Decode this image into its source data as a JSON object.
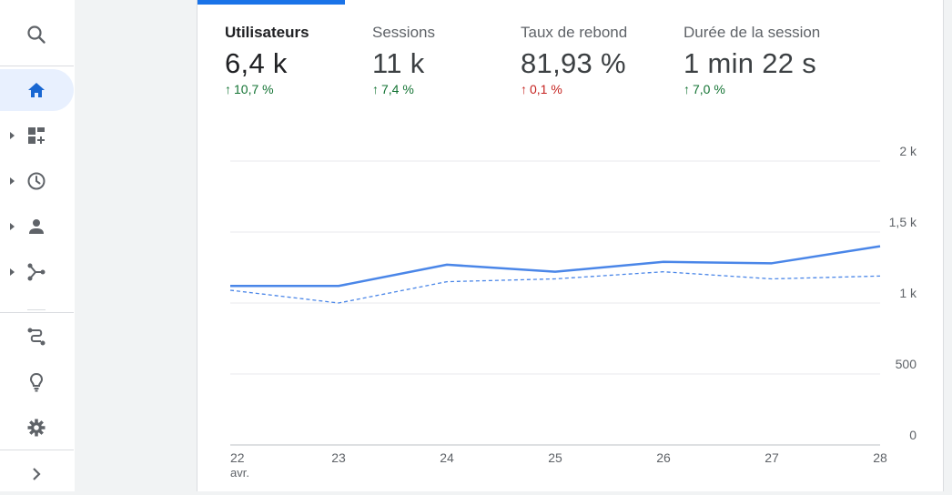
{
  "sidebar": {
    "items": [
      {
        "icon": "search-icon"
      },
      {
        "icon": "home-icon"
      },
      {
        "icon": "dashboard-add-icon"
      },
      {
        "icon": "clock-icon"
      },
      {
        "icon": "person-icon"
      },
      {
        "icon": "share-nodes-icon"
      },
      {
        "icon": "route-icon"
      },
      {
        "icon": "lightbulb-icon"
      },
      {
        "icon": "gear-icon"
      },
      {
        "icon": "chevron-right-icon"
      }
    ],
    "active_color": "#1967d2",
    "icon_color": "#5f6368"
  },
  "metrics": [
    {
      "label": "Utilisateurs",
      "value": "6,4 k",
      "delta": "10,7 %",
      "trend": "up",
      "color": "#137333"
    },
    {
      "label": "Sessions",
      "value": "11 k",
      "delta": "7,4 %",
      "trend": "up",
      "color": "#137333"
    },
    {
      "label": "Taux de rebond",
      "value": "81,93 %",
      "delta": "0,1 %",
      "trend": "up",
      "color": "#c5221f"
    },
    {
      "label": "Durée de la session",
      "value": "1 min 22 s",
      "delta": "7,0 %",
      "trend": "up",
      "color": "#137333"
    }
  ],
  "chart_data": {
    "type": "line",
    "x": [
      "22",
      "23",
      "24",
      "25",
      "26",
      "27",
      "28"
    ],
    "x_sublabel": "avr.",
    "y_ticks": [
      "0",
      "500",
      "1 k",
      "1,5 k",
      "2 k"
    ],
    "ylim": [
      0,
      2000
    ],
    "series": [
      {
        "style": "solid",
        "color": "#4a86e8",
        "values": [
          1120,
          1120,
          1270,
          1220,
          1290,
          1280,
          1400
        ]
      },
      {
        "style": "dashed",
        "color": "#4a86e8",
        "values": [
          1090,
          1000,
          1150,
          1170,
          1220,
          1170,
          1190
        ]
      }
    ]
  }
}
